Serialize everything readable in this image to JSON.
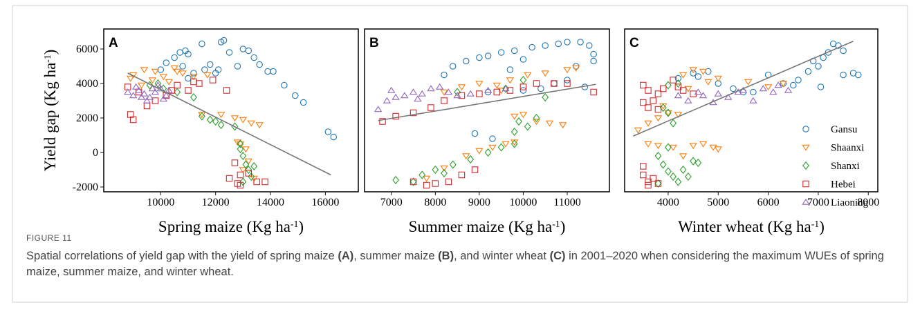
{
  "chart_data": [
    {
      "type": "scatter",
      "panel": "A",
      "ylabel": [
        "Yield gap (Kg ha",
        "-1",
        ")"
      ],
      "xlabel": [
        "Spring maize (Kg ha",
        "-1",
        ")"
      ],
      "xlim": [
        7925,
        17200
      ],
      "xticks": [
        {
          "value": 10000,
          "label": "10000"
        },
        12000,
        14000,
        16000
      ],
      "ylim": [
        -2280,
        7160
      ],
      "yticks": [
        -2000,
        0,
        2000,
        4000,
        6000
      ],
      "trendline": {
        "x": [
          8800,
          16200
        ],
        "y": [
          4600,
          -1300
        ]
      },
      "series": [
        {
          "color": "#1f77b4",
          "marker": "circle",
          "x": [
            10000,
            10200,
            10500,
            10700,
            10900,
            11000,
            11200,
            11500,
            11800,
            12000,
            12200,
            12300,
            12500,
            12800,
            13000,
            13200,
            13400,
            13600,
            13900,
            14100,
            14500,
            14900,
            15200,
            16100,
            16300,
            11000,
            11600,
            10800,
            12100
          ],
          "values": [
            4800,
            5200,
            5500,
            5800,
            5900,
            5700,
            4600,
            6300,
            5100,
            4600,
            6400,
            6500,
            5800,
            5000,
            6000,
            5900,
            5500,
            5100,
            4700,
            4700,
            3900,
            3300,
            2900,
            1200,
            900,
            4300,
            4800,
            5000,
            4800
          ]
        },
        {
          "color": "#ff7f0e",
          "marker": "triangle-down",
          "x": [
            9000,
            9400,
            9800,
            10100,
            10500,
            10800,
            11200,
            11700,
            9300,
            10600,
            11500,
            12200,
            12700,
            13000,
            13300,
            13600,
            12800,
            12900,
            13100,
            13200,
            13000,
            13400,
            8900,
            9700,
            10300
          ],
          "values": [
            4500,
            4800,
            4700,
            4400,
            4900,
            4600,
            4400,
            4500,
            3900,
            4700,
            2200,
            2200,
            2000,
            1900,
            1700,
            1600,
            600,
            500,
            200,
            -500,
            -1000,
            -1500,
            4300,
            4200,
            4100
          ]
        },
        {
          "color": "#2ca02c",
          "marker": "diamond",
          "x": [
            9600,
            10100,
            10600,
            11200,
            11500,
            11800,
            12200,
            12700,
            12900,
            13000,
            13100,
            13200,
            13300,
            13000,
            12900,
            13400,
            9900,
            12000
          ],
          "values": [
            3900,
            3700,
            3500,
            3200,
            2100,
            1900,
            1600,
            1500,
            200,
            -200,
            -700,
            -1000,
            -1400,
            -1700,
            500,
            -800,
            4000,
            1800
          ]
        },
        {
          "color": "#d62728",
          "marker": "square",
          "x": [
            8800,
            8900,
            9000,
            9200,
            9500,
            9800,
            10200,
            10600,
            11000,
            11400,
            11900,
            12400,
            12500,
            12800,
            12900,
            13200,
            13500,
            13800,
            12700,
            12900,
            10400,
            11200
          ],
          "values": [
            3800,
            2200,
            1900,
            3500,
            2700,
            3000,
            3300,
            3900,
            3600,
            4000,
            4200,
            3600,
            -1500,
            -1800,
            -1300,
            -1200,
            -1700,
            -1700,
            -600,
            -1900,
            3600,
            4100
          ]
        },
        {
          "color": "#9467bd",
          "marker": "triangle-up",
          "x": [
            8800,
            9000,
            9200,
            9400,
            9600,
            9800,
            10000,
            10200,
            9100,
            9500,
            9900,
            10300,
            9300,
            9700,
            10100
          ],
          "values": [
            3500,
            3300,
            3600,
            3400,
            3200,
            3500,
            3700,
            3300,
            3800,
            3000,
            3900,
            3600,
            3200,
            3700,
            3100
          ]
        }
      ]
    },
    {
      "type": "scatter",
      "panel": "B",
      "xlabel": [
        "Summer maize (Kg ha",
        "-1",
        ")"
      ],
      "xlim": [
        6390,
        11960
      ],
      "xticks": [
        7000,
        8000,
        9000,
        10000,
        11000
      ],
      "ylim": [
        -2280,
        7160
      ],
      "trendline": {
        "x": [
          6700,
          11650
        ],
        "y": [
          1850,
          3950
        ]
      },
      "series": [
        {
          "color": "#1f77b4",
          "marker": "circle",
          "x": [
            8200,
            8400,
            8700,
            9000,
            9200,
            9500,
            9800,
            10000,
            10200,
            10500,
            10800,
            11000,
            11300,
            11500,
            11600,
            11600,
            9200,
            10000,
            10400,
            10700,
            11000,
            11200,
            8900,
            9300,
            11400,
            9700
          ],
          "values": [
            4500,
            5000,
            5300,
            5500,
            5600,
            5800,
            5900,
            5400,
            6100,
            6200,
            6300,
            6400,
            6400,
            6200,
            5700,
            5300,
            3500,
            3600,
            3700,
            4000,
            4200,
            5000,
            1100,
            800,
            3800,
            4800
          ]
        },
        {
          "color": "#ff7f0e",
          "marker": "triangle-down",
          "x": [
            8200,
            8600,
            9000,
            9400,
            9700,
            10100,
            10500,
            11000,
            11200,
            9800,
            10000,
            10300,
            10600,
            10900,
            8700,
            9000,
            9300,
            9600,
            9800,
            7800,
            8200,
            9500
          ],
          "values": [
            3500,
            3800,
            4000,
            3900,
            4200,
            4500,
            4600,
            4800,
            4900,
            2100,
            2200,
            1800,
            1700,
            1600,
            -200,
            100,
            300,
            500,
            600,
            -1500,
            -900,
            3600
          ]
        },
        {
          "color": "#2ca02c",
          "marker": "diamond",
          "x": [
            7100,
            7500,
            7700,
            8000,
            8400,
            8800,
            9200,
            9500,
            9800,
            9800,
            9900,
            10100,
            10300,
            9600,
            10000,
            10500,
            8500,
            8200
          ],
          "values": [
            -1600,
            -1700,
            -1300,
            -1000,
            -700,
            -400,
            0,
            300,
            500,
            1200,
            1800,
            1500,
            2000,
            3700,
            4200,
            3200,
            3500,
            -1200
          ]
        },
        {
          "color": "#d62728",
          "marker": "square",
          "x": [
            6800,
            7100,
            7500,
            7900,
            8200,
            8600,
            9000,
            9400,
            9700,
            10000,
            10300,
            10700,
            11000,
            11600,
            7800,
            8000,
            8300,
            8600,
            8900,
            7500
          ],
          "values": [
            1800,
            2100,
            2300,
            2600,
            3000,
            3300,
            3400,
            3500,
            3600,
            3800,
            4000,
            4000,
            4000,
            3500,
            -1900,
            -1800,
            -1700,
            -1300,
            -1000,
            -1700
          ]
        },
        {
          "color": "#9467bd",
          "marker": "triangle-up",
          "x": [
            6700,
            6900,
            7100,
            7300,
            7500,
            7700,
            7900,
            8100,
            8300,
            8500,
            8800,
            9200,
            9600,
            7000,
            7600
          ],
          "values": [
            2500,
            3000,
            3200,
            3300,
            3500,
            3400,
            3700,
            3800,
            3500,
            3300,
            3400,
            3600,
            3700,
            3600,
            3100
          ]
        }
      ]
    },
    {
      "type": "scatter",
      "panel": "C",
      "xlabel": [
        "Winter wheat (Kg ha",
        "-1",
        ")"
      ],
      "xlim": [
        3130,
        8190
      ],
      "xticks": [
        4000,
        5000,
        6000,
        7000,
        8000
      ],
      "ylim": [
        -2280,
        7160
      ],
      "legend": "right",
      "trendline": {
        "x": [
          3300,
          7700
        ],
        "y": [
          950,
          6450
        ]
      },
      "series": [
        {
          "name": "Gansu",
          "color": "#1f77b4",
          "marker": "circle",
          "x": [
            4200,
            4500,
            4800,
            5000,
            5300,
            5700,
            6000,
            6300,
            6600,
            6800,
            7000,
            7100,
            7200,
            7300,
            7400,
            7500,
            7700,
            7800,
            7500,
            7050,
            6500,
            4600,
            5500,
            6900
          ],
          "values": [
            4300,
            4600,
            4700,
            4000,
            3700,
            3500,
            4500,
            4000,
            4200,
            4700,
            5000,
            5500,
            5800,
            6300,
            6200,
            5900,
            4600,
            4500,
            4500,
            3800,
            3900,
            4400,
            3500,
            5300
          ]
        },
        {
          "name": "Shaanxi",
          "color": "#ff7f0e",
          "marker": "triangle-down",
          "x": [
            3400,
            3600,
            3800,
            4000,
            4200,
            4300,
            4500,
            4700,
            5000,
            5600,
            6000,
            6300,
            3600,
            3800,
            4100,
            4300,
            4500,
            4700,
            4900,
            5000,
            4400,
            3900,
            4800
          ],
          "values": [
            1300,
            1700,
            2000,
            2300,
            2200,
            4500,
            4800,
            4700,
            4300,
            4100,
            3800,
            4000,
            500,
            400,
            300,
            -200,
            400,
            500,
            300,
            200,
            3700,
            2700,
            4100
          ]
        },
        {
          "name": "Shanxi",
          "color": "#2ca02c",
          "marker": "diamond",
          "x": [
            3900,
            4000,
            4100,
            4000,
            4200,
            3800,
            3900,
            4000,
            4100,
            4200,
            4300,
            4500,
            4600,
            3800,
            4400,
            4000
          ],
          "values": [
            2600,
            2300,
            1700,
            3900,
            4000,
            -200,
            -700,
            -1100,
            -1400,
            -1700,
            -1000,
            -500,
            -600,
            -1800,
            -1400,
            300
          ]
        },
        {
          "name": "Hebei",
          "color": "#d62728",
          "marker": "square",
          "x": [
            3500,
            3600,
            3800,
            3900,
            3600,
            3800,
            3700,
            4200,
            4300,
            4500,
            3500,
            3600,
            3600,
            3700,
            3500,
            3800,
            4100,
            3500
          ],
          "values": [
            3900,
            3600,
            3400,
            3700,
            2600,
            2500,
            3000,
            3800,
            3600,
            3400,
            -1300,
            -1700,
            -1900,
            -1500,
            -800,
            -1800,
            4200,
            2900
          ]
        },
        {
          "name": "Liaoning",
          "color": "#9467bd",
          "marker": "triangle-up",
          "x": [
            4200,
            4400,
            4700,
            5000,
            5200,
            5400,
            5700,
            5900,
            6100,
            6400,
            4900,
            5500,
            4600,
            6200
          ],
          "values": [
            3300,
            3000,
            3300,
            3400,
            3200,
            3500,
            3000,
            3700,
            3500,
            3600,
            2900,
            3600,
            3500,
            3900
          ]
        }
      ]
    }
  ],
  "figure_label": "FIGURE 11",
  "caption": [
    {
      "text": "Spatial correlations of yield gap with the yield of spring maize "
    },
    {
      "text": "(A)",
      "bold": true
    },
    {
      "text": ", summer maize "
    },
    {
      "text": "(B)",
      "bold": true
    },
    {
      "text": ", and winter wheat "
    },
    {
      "text": "(C)",
      "bold": true
    },
    {
      "text": " in 2001–2020 when considering the maximum WUEs of spring maize, summer maize, and winter wheat."
    }
  ]
}
